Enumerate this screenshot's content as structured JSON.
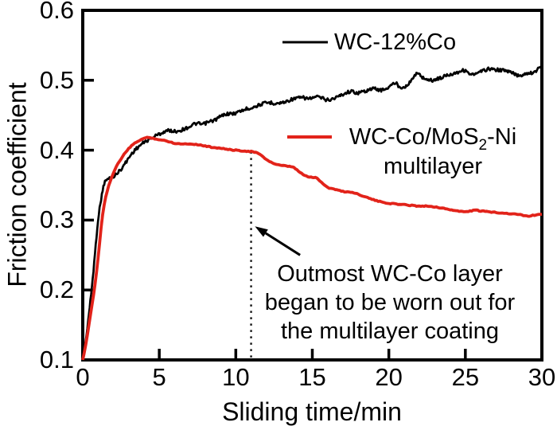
{
  "figure": {
    "background": "#ffffff",
    "ylabel": "Friction coefficient",
    "xlabel": "Sliding time/min",
    "legend": {
      "wc12co": {
        "label": "WC-12%Co",
        "color": "#000000"
      },
      "multilayer": {
        "label_pre": "WC-Co/MoS",
        "label_sub": "2",
        "label_post": "-Ni",
        "label_line2": "multilayer",
        "color": "#e2231a"
      }
    },
    "annotation": {
      "line1": "Outmost WC-Co layer",
      "line2": "began to be worn out for",
      "line3": "the multilayer coating"
    }
  },
  "chart_data": {
    "type": "line",
    "title": "",
    "xlabel": "Sliding time/min",
    "ylabel": "Friction coefficient",
    "xlim": [
      0,
      30
    ],
    "ylim": [
      0.1,
      0.6
    ],
    "grid": false,
    "legend_position": "inside top-right area, stacked",
    "x_ticks": {
      "values": [
        0,
        5,
        10,
        15,
        20,
        25,
        30
      ],
      "labels": [
        "0",
        "5",
        "10",
        "15",
        "20",
        "25",
        "30"
      ]
    },
    "y_ticks": {
      "values": [
        0.1,
        0.2,
        0.3,
        0.4,
        0.5,
        0.6
      ],
      "labels": [
        "0.1",
        "0.2",
        "0.3",
        "0.4",
        "0.5",
        "0.6"
      ]
    },
    "series": [
      {
        "name": "WC-12%Co",
        "color": "#000000",
        "points": [
          [
            0,
            0.1
          ],
          [
            0.2,
            0.128
          ],
          [
            0.4,
            0.165
          ],
          [
            0.6,
            0.205
          ],
          [
            0.8,
            0.252
          ],
          [
            1.0,
            0.3
          ],
          [
            1.2,
            0.33
          ],
          [
            1.4,
            0.352
          ],
          [
            1.6,
            0.358
          ],
          [
            1.8,
            0.36
          ],
          [
            2.0,
            0.362
          ],
          [
            2.2,
            0.366
          ],
          [
            2.5,
            0.373
          ],
          [
            2.8,
            0.382
          ],
          [
            3.1,
            0.392
          ],
          [
            3.4,
            0.4
          ],
          [
            3.7,
            0.406
          ],
          [
            4.0,
            0.411
          ],
          [
            4.3,
            0.415
          ],
          [
            4.6,
            0.419
          ],
          [
            5.0,
            0.423
          ],
          [
            5.4,
            0.427
          ],
          [
            5.7,
            0.428
          ],
          [
            6.0,
            0.427
          ],
          [
            6.3,
            0.428
          ],
          [
            6.6,
            0.43
          ],
          [
            7.0,
            0.434
          ],
          [
            7.4,
            0.438
          ],
          [
            7.8,
            0.437
          ],
          [
            8.2,
            0.44
          ],
          [
            8.6,
            0.443
          ],
          [
            9.0,
            0.448
          ],
          [
            9.4,
            0.452
          ],
          [
            9.8,
            0.452
          ],
          [
            10.2,
            0.455
          ],
          [
            10.7,
            0.459
          ],
          [
            11.2,
            0.462
          ],
          [
            11.7,
            0.466
          ],
          [
            12.2,
            0.468
          ],
          [
            12.7,
            0.467
          ],
          [
            13.2,
            0.469
          ],
          [
            13.7,
            0.473
          ],
          [
            14.3,
            0.475
          ],
          [
            14.8,
            0.474
          ],
          [
            15.4,
            0.476
          ],
          [
            16.0,
            0.472
          ],
          [
            16.5,
            0.475
          ],
          [
            17.0,
            0.48
          ],
          [
            17.5,
            0.484
          ],
          [
            18.0,
            0.482
          ],
          [
            18.5,
            0.485
          ],
          [
            19.0,
            0.488
          ],
          [
            19.5,
            0.486
          ],
          [
            20.0,
            0.49
          ],
          [
            20.4,
            0.496
          ],
          [
            20.8,
            0.49
          ],
          [
            21.3,
            0.495
          ],
          [
            21.8,
            0.509
          ],
          [
            22.3,
            0.503
          ],
          [
            22.8,
            0.5
          ],
          [
            23.3,
            0.503
          ],
          [
            23.8,
            0.507
          ],
          [
            24.4,
            0.511
          ],
          [
            24.9,
            0.514
          ],
          [
            25.5,
            0.508
          ],
          [
            26.0,
            0.512
          ],
          [
            26.5,
            0.516
          ],
          [
            27.0,
            0.515
          ],
          [
            27.5,
            0.514
          ],
          [
            28.0,
            0.511
          ],
          [
            28.5,
            0.507
          ],
          [
            29.0,
            0.51
          ],
          [
            29.5,
            0.512
          ],
          [
            30,
            0.52
          ]
        ]
      },
      {
        "name": "WC-Co/MoS2-Ni multilayer",
        "color": "#e2231a",
        "points": [
          [
            0,
            0.1
          ],
          [
            0.2,
            0.122
          ],
          [
            0.4,
            0.15
          ],
          [
            0.6,
            0.178
          ],
          [
            0.8,
            0.208
          ],
          [
            1.0,
            0.245
          ],
          [
            1.2,
            0.29
          ],
          [
            1.4,
            0.322
          ],
          [
            1.6,
            0.342
          ],
          [
            1.8,
            0.356
          ],
          [
            2.1,
            0.372
          ],
          [
            2.4,
            0.384
          ],
          [
            2.7,
            0.394
          ],
          [
            3.0,
            0.402
          ],
          [
            3.4,
            0.41
          ],
          [
            3.8,
            0.415
          ],
          [
            4.2,
            0.418
          ],
          [
            4.6,
            0.417
          ],
          [
            5.0,
            0.415
          ],
          [
            5.5,
            0.413
          ],
          [
            6.0,
            0.41
          ],
          [
            6.5,
            0.409
          ],
          [
            7.0,
            0.409
          ],
          [
            7.5,
            0.408
          ],
          [
            8.0,
            0.406
          ],
          [
            8.5,
            0.404
          ],
          [
            9.0,
            0.403
          ],
          [
            9.5,
            0.401
          ],
          [
            10.0,
            0.4
          ],
          [
            10.5,
            0.399
          ],
          [
            11.0,
            0.398
          ],
          [
            11.4,
            0.396
          ],
          [
            11.8,
            0.39
          ],
          [
            12.2,
            0.384
          ],
          [
            12.6,
            0.38
          ],
          [
            13.0,
            0.378
          ],
          [
            13.4,
            0.377
          ],
          [
            13.8,
            0.375
          ],
          [
            14.2,
            0.368
          ],
          [
            14.6,
            0.363
          ],
          [
            15.0,
            0.361
          ],
          [
            15.3,
            0.36
          ],
          [
            15.7,
            0.352
          ],
          [
            16.1,
            0.346
          ],
          [
            16.5,
            0.344
          ],
          [
            17.0,
            0.341
          ],
          [
            17.5,
            0.34
          ],
          [
            18.0,
            0.337
          ],
          [
            18.5,
            0.333
          ],
          [
            19.0,
            0.329
          ],
          [
            19.5,
            0.326
          ],
          [
            20.0,
            0.324
          ],
          [
            20.5,
            0.323
          ],
          [
            21.0,
            0.322
          ],
          [
            21.5,
            0.321
          ],
          [
            22.0,
            0.32
          ],
          [
            22.5,
            0.32
          ],
          [
            23.0,
            0.319
          ],
          [
            23.5,
            0.317
          ],
          [
            24.0,
            0.315
          ],
          [
            24.5,
            0.313
          ],
          [
            25.0,
            0.312
          ],
          [
            25.6,
            0.314
          ],
          [
            26.0,
            0.313
          ],
          [
            26.5,
            0.312
          ],
          [
            27.0,
            0.311
          ],
          [
            27.5,
            0.31
          ],
          [
            28.0,
            0.309
          ],
          [
            28.5,
            0.308
          ],
          [
            29.0,
            0.306
          ],
          [
            29.5,
            0.307
          ],
          [
            30,
            0.309
          ]
        ]
      }
    ],
    "annotation": {
      "text": "Outmost WC-Co layer began to be worn out for the multilayer coating",
      "dashed_line_x": 11,
      "dashed_line_y_range": [
        0.102,
        0.398
      ],
      "arrow_tip": [
        11.25,
        0.291
      ],
      "arrow_tail": [
        14.2,
        0.25
      ]
    }
  }
}
